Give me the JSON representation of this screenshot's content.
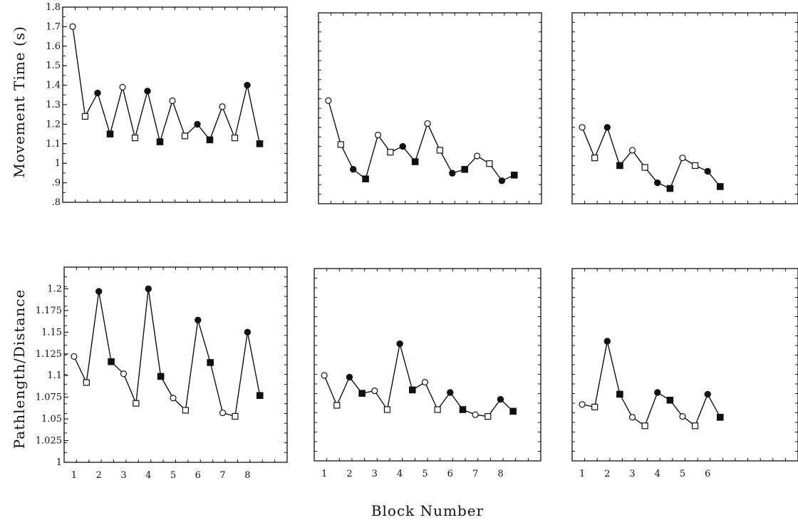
{
  "figure": {
    "ylabel_top": "Movement  Time  (s)",
    "ylabel_bottom": "Pathlength/Distance",
    "xlabel": "Block  Number"
  },
  "chart_data": [
    {
      "type": "line",
      "panel": "top-left",
      "ylabel": "Movement  Time  (s)",
      "ylim": [
        0.8,
        1.8
      ],
      "yticks": [
        0.8,
        0.9,
        1.0,
        1.1,
        1.2,
        1.3,
        1.4,
        1.5,
        1.6,
        1.7,
        1.8
      ],
      "ytick_labels": [
        ".8",
        ".9",
        "1",
        "1.1",
        "1.2",
        "1.3",
        "1.4",
        "1.5",
        "1.6",
        "1.7",
        "1.8"
      ],
      "xlim": [
        0.6,
        9.6
      ],
      "xticks": [],
      "xtick_labels": [],
      "x": [
        1,
        1.5,
        2,
        2.5,
        3,
        3.5,
        4,
        4.5,
        5,
        5.5,
        6,
        6.5,
        7,
        7.5,
        8,
        8.5
      ],
      "y": [
        1.7,
        1.24,
        1.36,
        1.15,
        1.39,
        1.13,
        1.37,
        1.11,
        1.32,
        1.14,
        1.2,
        1.12,
        1.29,
        1.13,
        1.4,
        1.1
      ],
      "markers": [
        "open-circle",
        "open-square",
        "filled-circle",
        "filled-square",
        "open-circle",
        "open-square",
        "filled-circle",
        "filled-square",
        "open-circle",
        "open-square",
        "filled-circle",
        "filled-square",
        "open-circle",
        "open-square",
        "filled-circle",
        "filled-square"
      ]
    },
    {
      "type": "line",
      "panel": "top-middle",
      "ylim": [
        0.8,
        1.8
      ],
      "yticks": [],
      "ytick_labels": [],
      "xlim": [
        0.6,
        9.6
      ],
      "xticks": [],
      "xtick_labels": [],
      "x": [
        1,
        1.5,
        2,
        2.5,
        3,
        3.5,
        4,
        4.5,
        5,
        5.5,
        6,
        6.5,
        7,
        7.5,
        8,
        8.5
      ],
      "y": [
        1.34,
        1.11,
        0.98,
        0.93,
        1.16,
        1.07,
        1.1,
        1.02,
        1.22,
        1.08,
        0.96,
        0.98,
        1.05,
        1.01,
        0.92,
        0.95
      ],
      "markers": [
        "open-circle",
        "open-square",
        "filled-circle",
        "filled-square",
        "open-circle",
        "open-square",
        "filled-circle",
        "filled-square",
        "open-circle",
        "open-square",
        "filled-circle",
        "filled-square",
        "open-circle",
        "open-square",
        "filled-circle",
        "filled-square"
      ]
    },
    {
      "type": "line",
      "panel": "top-right",
      "ylim": [
        0.8,
        1.8
      ],
      "yticks": [],
      "ytick_labels": [],
      "xlim": [
        0.6,
        9.6
      ],
      "xticks": [],
      "xtick_labels": [],
      "x": [
        1,
        1.5,
        2,
        2.5,
        3,
        3.5,
        4,
        4.5,
        5,
        5.5,
        6,
        6.5
      ],
      "y": [
        1.2,
        1.04,
        1.2,
        1.0,
        1.08,
        0.99,
        0.91,
        0.88,
        1.04,
        1.0,
        0.97,
        0.89
      ],
      "markers": [
        "open-circle",
        "open-square",
        "filled-circle",
        "filled-square",
        "open-circle",
        "open-square",
        "filled-circle",
        "filled-square",
        "open-circle",
        "open-square",
        "filled-circle",
        "filled-square"
      ]
    },
    {
      "type": "line",
      "panel": "bottom-left",
      "ylabel": "Pathlength/Distance",
      "ylim": [
        1.0,
        1.225
      ],
      "yticks": [
        1.0,
        1.025,
        1.05,
        1.075,
        1.1,
        1.125,
        1.15,
        1.175,
        1.2
      ],
      "ytick_labels": [
        "1",
        "1.025",
        "1.05",
        "1.075",
        "1.1",
        "1.125",
        "1.15",
        "1.175",
        "1.2"
      ],
      "xlim": [
        0.6,
        9.6
      ],
      "xticks": [
        1,
        2,
        3,
        4,
        5,
        6,
        7,
        8
      ],
      "xtick_labels": [
        "1",
        "2",
        "3",
        "4",
        "5",
        "6",
        "7",
        "8"
      ],
      "x": [
        1,
        1.5,
        2,
        2.5,
        3,
        3.5,
        4,
        4.5,
        5,
        5.5,
        6,
        6.5,
        7,
        7.5,
        8,
        8.5
      ],
      "y": [
        1.122,
        1.092,
        1.197,
        1.116,
        1.102,
        1.068,
        1.2,
        1.099,
        1.074,
        1.06,
        1.164,
        1.115,
        1.057,
        1.053,
        1.15,
        1.077
      ],
      "markers": [
        "open-circle",
        "open-square",
        "filled-circle",
        "filled-square",
        "open-circle",
        "open-square",
        "filled-circle",
        "filled-square",
        "open-circle",
        "open-square",
        "filled-circle",
        "filled-square",
        "open-circle",
        "open-square",
        "filled-circle",
        "filled-square"
      ]
    },
    {
      "type": "line",
      "panel": "bottom-middle",
      "ylim": [
        1.0,
        1.225
      ],
      "yticks": [],
      "ytick_labels": [],
      "xlim": [
        0.6,
        9.6
      ],
      "xticks": [
        1,
        2,
        3,
        4,
        5,
        6,
        7,
        8
      ],
      "xtick_labels": [
        "1",
        "2",
        "3",
        "4",
        "5",
        "6",
        "7",
        "8"
      ],
      "x": [
        1,
        1.5,
        2,
        2.5,
        3,
        3.5,
        4,
        4.5,
        5,
        5.5,
        6,
        6.5,
        7,
        7.5,
        8,
        8.5
      ],
      "y": [
        1.1,
        1.065,
        1.098,
        1.079,
        1.082,
        1.06,
        1.137,
        1.083,
        1.092,
        1.06,
        1.08,
        1.06,
        1.054,
        1.052,
        1.072,
        1.058
      ],
      "markers": [
        "open-circle",
        "open-square",
        "filled-circle",
        "filled-square",
        "open-circle",
        "open-square",
        "filled-circle",
        "filled-square",
        "open-circle",
        "open-square",
        "filled-circle",
        "filled-square",
        "open-circle",
        "open-square",
        "filled-circle",
        "filled-square"
      ]
    },
    {
      "type": "line",
      "panel": "bottom-right",
      "ylim": [
        1.0,
        1.225
      ],
      "yticks": [],
      "ytick_labels": [],
      "xlim": [
        0.6,
        9.6
      ],
      "xticks": [
        1,
        2,
        3,
        4,
        5,
        6
      ],
      "xtick_labels": [
        "1",
        "2",
        "3",
        "4",
        "5",
        "6"
      ],
      "x": [
        1,
        1.5,
        2,
        2.5,
        3,
        3.5,
        4,
        4.5,
        5,
        5.5,
        6,
        6.5
      ],
      "y": [
        1.066,
        1.063,
        1.14,
        1.078,
        1.051,
        1.041,
        1.08,
        1.071,
        1.052,
        1.041,
        1.078,
        1.051
      ],
      "markers": [
        "open-circle",
        "open-square",
        "filled-circle",
        "filled-square",
        "open-circle",
        "open-square",
        "filled-circle",
        "filled-square",
        "open-circle",
        "open-square",
        "filled-circle",
        "filled-square"
      ]
    }
  ]
}
